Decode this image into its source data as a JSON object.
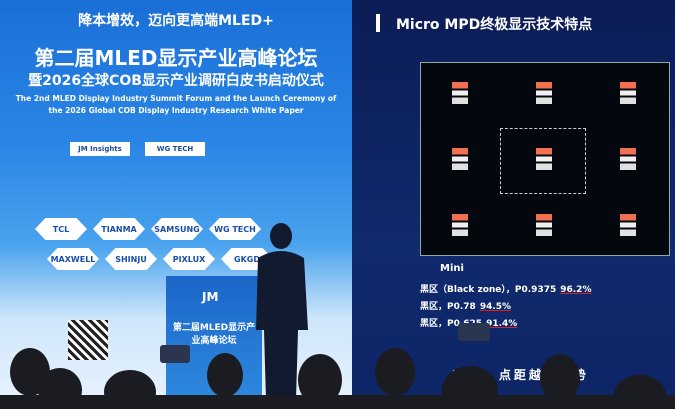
{
  "banner": {
    "slogan": "降本增效，迈向更高端MLED+",
    "title": "第二届MLED显示产业高峰论坛",
    "subtitle": "暨2026全球COB显示产业调研白皮书启动仪式",
    "english_line1": "The 2nd MLED Display Industry Summit Forum and the Launch Ceremony of",
    "english_line2": "the 2026 Global COB Display Industry Research White Paper",
    "sponsors": [
      "JM Insights",
      "WG TECH"
    ],
    "logos": [
      "TCL",
      "TIANMA",
      "SAMSUNG",
      "WG TECH",
      "MAXWELL",
      "SHINJU",
      "PIXLUX",
      "GKGD"
    ]
  },
  "podium": {
    "brand": "JM",
    "title": "第二届MLED显示产业高峰论坛"
  },
  "screen": {
    "title": "Micro MPD终极显示技术特点",
    "section": "Mini",
    "rows": [
      {
        "label": "黑区（Black zone），P0.9375",
        "value": "96.2%"
      },
      {
        "label": "黑区，P0.78",
        "value": "94.5%"
      },
      {
        "label": "黑区，P0.625",
        "value": "91.4%"
      }
    ],
    "footer": "MPD 点距越小优势"
  }
}
